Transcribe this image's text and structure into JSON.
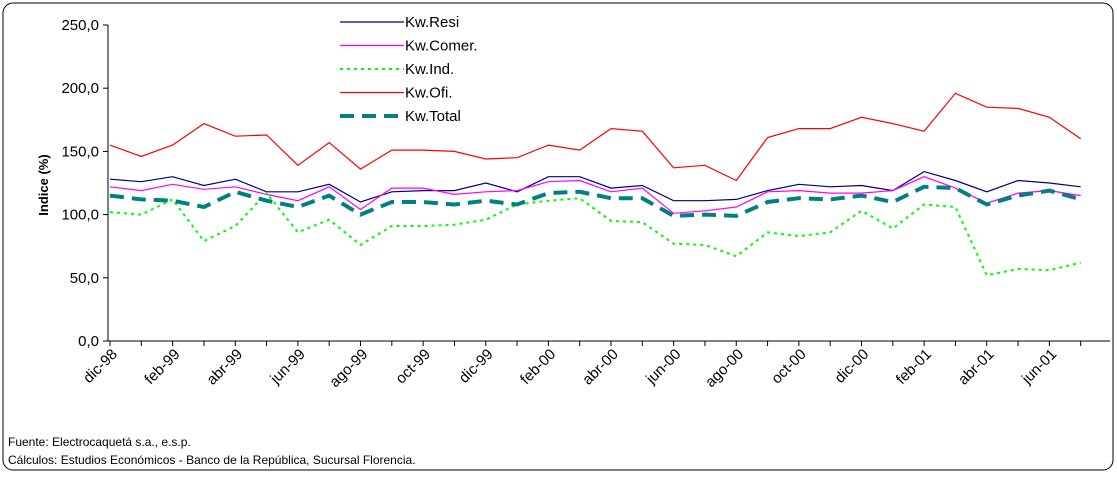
{
  "chart_data": {
    "type": "line",
    "y_label": "Indice (%)",
    "categories": [
      "dic-98",
      null,
      "feb-99",
      null,
      "abr-99",
      null,
      "jun-99",
      null,
      "ago-99",
      null,
      "oct-99",
      null,
      "dic-99",
      null,
      "feb-00",
      null,
      "abr-00",
      null,
      "jun-00",
      null,
      "ago-00",
      null,
      "oct-00",
      null,
      "dic-00",
      null,
      "feb-01",
      null,
      "abr-01",
      null,
      "jun-01",
      null
    ],
    "series": [
      {
        "name": "Kw.Resi",
        "color": "#000080",
        "dash": "solid",
        "values": [
          128,
          126,
          130,
          123,
          128,
          118,
          118,
          124,
          110,
          118,
          119,
          119,
          125,
          118,
          130,
          130,
          121,
          123,
          111,
          111,
          112,
          119,
          124,
          122,
          123,
          119,
          134,
          127,
          118,
          127,
          125,
          122
        ]
      },
      {
        "name": "Kw.Comer.",
        "color": "#ff00ff",
        "dash": "solid",
        "values": [
          122,
          119,
          124,
          120,
          122,
          116,
          111,
          122,
          104,
          121,
          121,
          116,
          118,
          119,
          126,
          127,
          118,
          121,
          101,
          103,
          106,
          118,
          119,
          117,
          117,
          119,
          130,
          121,
          109,
          117,
          119,
          115
        ]
      },
      {
        "name": "Kw.Ind.",
        "color": "#00ff00",
        "dash": "dotted",
        "values": [
          102,
          100,
          112,
          79,
          91,
          117,
          86,
          96,
          76,
          91,
          91,
          92,
          96,
          108,
          111,
          113,
          95,
          94,
          77,
          76,
          67,
          86,
          83,
          86,
          103,
          89,
          108,
          106,
          52,
          57,
          56,
          62
        ]
      },
      {
        "name": "Kw.Ofi.",
        "color": "#ff0000",
        "dash": "solid",
        "values": [
          155,
          146,
          155,
          172,
          162,
          163,
          139,
          157,
          136,
          151,
          151,
          150,
          144,
          145,
          155,
          151,
          168,
          166,
          137,
          139,
          127,
          161,
          168,
          168,
          177,
          172,
          166,
          196,
          185,
          184,
          177,
          160
        ]
      },
      {
        "name": "Kw.Total",
        "color": "#008080",
        "dash": "dashed",
        "values": [
          115,
          112,
          111,
          106,
          118,
          111,
          106,
          115,
          100,
          110,
          110,
          108,
          111,
          108,
          117,
          118,
          113,
          113,
          99,
          100,
          99,
          110,
          113,
          112,
          115,
          110,
          122,
          121,
          108,
          115,
          119,
          112
        ]
      }
    ],
    "ylim": [
      0,
      250
    ],
    "yticks": [
      {
        "value": 0,
        "label": "0,0"
      },
      {
        "value": 50,
        "label": "50,0"
      },
      {
        "value": 100,
        "label": "100,0"
      },
      {
        "value": 150,
        "label": "150,0"
      },
      {
        "value": 200,
        "label": "200,0"
      },
      {
        "value": 250,
        "label": "250,0"
      }
    ],
    "notes": [
      "Fuente: Electrocaquetá s.a., e.s.p.",
      "Cálculos:  Estudios Económicos - Banco de la República, Sucursal Florencia."
    ]
  }
}
